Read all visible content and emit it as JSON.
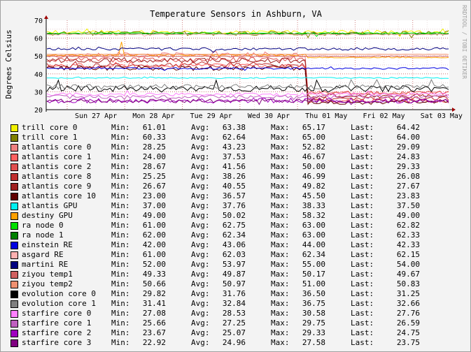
{
  "chart_data": {
    "type": "line",
    "title": "Temperature Sensors in Ashburn, VA",
    "ylabel": "Degrees Celsius",
    "xlabel": "",
    "ylim": [
      20,
      70
    ],
    "yticks": [
      "20",
      "30",
      "40",
      "50",
      "60",
      "70"
    ],
    "xticks": [
      "Sun 27 Apr",
      "Mon 28 Apr",
      "Tue 29 Apr",
      "Wed 30 Apr",
      "Thu 01 May",
      "Fri 02 May",
      "Sat 03 May"
    ],
    "grid": true,
    "legend_position": "bottom",
    "stat_labels": {
      "min": "Min:",
      "avg": "Avg:",
      "max": "Max:",
      "last": "Last:"
    },
    "series": [
      {
        "name": "trill core 0",
        "color": "#f0f000",
        "min": "61.01",
        "avg": "63.38",
        "max": "65.17",
        "last": "64.42"
      },
      {
        "name": "trill core 1",
        "color": "#808000",
        "min": "60.33",
        "avg": "62.64",
        "max": "65.00",
        "last": "64.00"
      },
      {
        "name": "atlantis core 0",
        "color": "#f08080",
        "min": "28.25",
        "avg": "43.23",
        "max": "52.82",
        "last": "29.09"
      },
      {
        "name": "atlantis core 1",
        "color": "#ff6060",
        "min": "24.00",
        "avg": "37.53",
        "max": "46.67",
        "last": "24.83"
      },
      {
        "name": "atlantis core 2",
        "color": "#e05050",
        "min": "28.67",
        "avg": "41.56",
        "max": "50.00",
        "last": "29.33"
      },
      {
        "name": "atlantis core 8",
        "color": "#c03030",
        "min": "25.25",
        "avg": "38.26",
        "max": "46.99",
        "last": "26.08"
      },
      {
        "name": "atlantis core 9",
        "color": "#a02020",
        "min": "26.67",
        "avg": "40.55",
        "max": "49.82",
        "last": "27.67"
      },
      {
        "name": "atlantis core 10",
        "color": "#600000",
        "min": "23.00",
        "avg": "36.57",
        "max": "45.50",
        "last": "23.83"
      },
      {
        "name": "atlantis GPU",
        "color": "#00f0f0",
        "min": "37.00",
        "avg": "37.76",
        "max": "38.33",
        "last": "37.50"
      },
      {
        "name": "destiny GPU",
        "color": "#ffa000",
        "min": "49.00",
        "avg": "50.02",
        "max": "58.32",
        "last": "49.00"
      },
      {
        "name": "ra node 0",
        "color": "#00e000",
        "min": "61.00",
        "avg": "62.75",
        "max": "63.00",
        "last": "62.82"
      },
      {
        "name": "ra node 1",
        "color": "#008000",
        "min": "62.00",
        "avg": "62.34",
        "max": "63.00",
        "last": "62.33"
      },
      {
        "name": "einstein RE",
        "color": "#0000e0",
        "min": "42.00",
        "avg": "43.06",
        "max": "44.00",
        "last": "42.33"
      },
      {
        "name": "asgard RE",
        "color": "#ffb0b0",
        "min": "61.00",
        "avg": "62.03",
        "max": "62.34",
        "last": "62.15"
      },
      {
        "name": "martini RE",
        "color": "#000080",
        "min": "52.00",
        "avg": "53.97",
        "max": "55.00",
        "last": "54.00"
      },
      {
        "name": "ziyou temp1",
        "color": "#d06060",
        "min": "49.33",
        "avg": "49.87",
        "max": "50.17",
        "last": "49.67"
      },
      {
        "name": "ziyou temp2",
        "color": "#f09070",
        "min": "50.66",
        "avg": "50.97",
        "max": "51.00",
        "last": "50.83"
      },
      {
        "name": "evolution core 0",
        "color": "#000000",
        "min": "29.82",
        "avg": "31.76",
        "max": "36.50",
        "last": "31.25"
      },
      {
        "name": "evolution core 1",
        "color": "#808080",
        "min": "31.41",
        "avg": "32.84",
        "max": "36.75",
        "last": "32.66"
      },
      {
        "name": "starfire core 0",
        "color": "#ff80ff",
        "min": "27.08",
        "avg": "28.53",
        "max": "30.58",
        "last": "27.76"
      },
      {
        "name": "starfire core 1",
        "color": "#c060c0",
        "min": "25.66",
        "avg": "27.25",
        "max": "29.75",
        "last": "26.59"
      },
      {
        "name": "starfire core 2",
        "color": "#a000c0",
        "min": "23.67",
        "avg": "25.07",
        "max": "29.33",
        "last": "24.75"
      },
      {
        "name": "starfire core 3",
        "color": "#800080",
        "min": "22.92",
        "avg": "24.96",
        "max": "27.58",
        "last": "23.75"
      }
    ]
  },
  "credit": "RRDTOOL / TOBI OETIKER"
}
